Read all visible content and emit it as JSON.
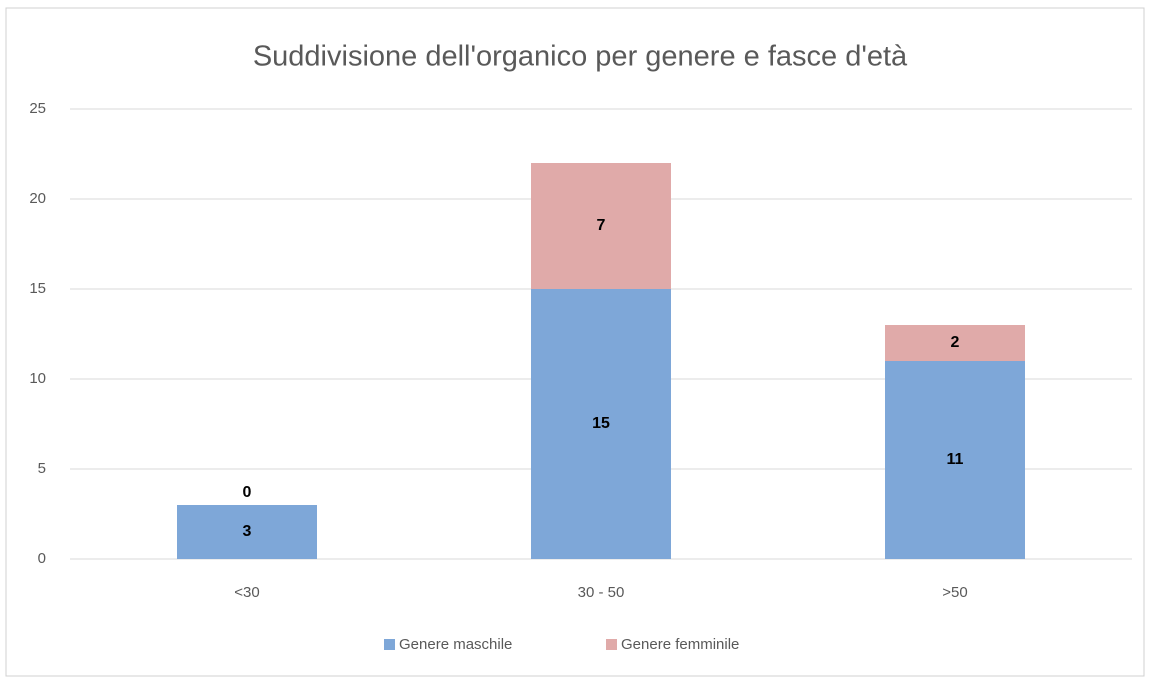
{
  "chart_data": {
    "type": "stacked_bar",
    "title": "Suddivisione dell'organico per genere e fasce d'età",
    "categories": [
      "<30",
      "30 - 50",
      ">50"
    ],
    "series": [
      {
        "name": "Genere maschile",
        "color": "#7ea7d8",
        "values": [
          3,
          15,
          11
        ]
      },
      {
        "name": "Genere femminile",
        "color": "#e0aaa9",
        "values": [
          0,
          7,
          2
        ]
      }
    ],
    "ylim": [
      0,
      25
    ],
    "yticks": [
      0,
      5,
      10,
      15,
      20,
      25
    ],
    "grid": true,
    "legend": "bottom"
  }
}
